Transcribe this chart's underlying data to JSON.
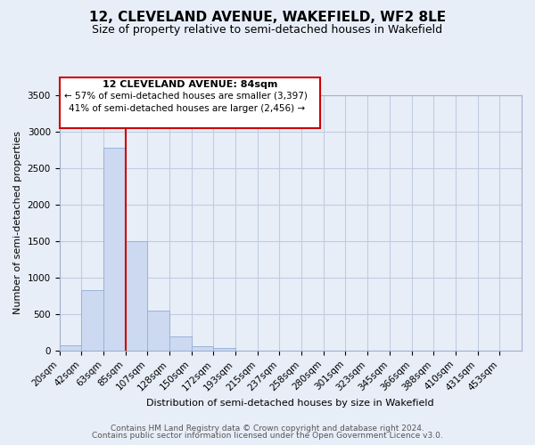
{
  "title": "12, CLEVELAND AVENUE, WAKEFIELD, WF2 8LE",
  "subtitle": "Size of property relative to semi-detached houses in Wakefield",
  "bar_categories": [
    "20sqm",
    "42sqm",
    "63sqm",
    "85sqm",
    "107sqm",
    "128sqm",
    "150sqm",
    "172sqm",
    "193sqm",
    "215sqm",
    "237sqm",
    "258sqm",
    "280sqm",
    "301sqm",
    "323sqm",
    "345sqm",
    "366sqm",
    "388sqm",
    "410sqm",
    "431sqm",
    "453sqm"
  ],
  "bar_values": [
    70,
    830,
    2780,
    1500,
    550,
    190,
    65,
    35,
    0,
    0,
    0,
    0,
    0,
    0,
    0,
    0,
    0,
    0,
    0,
    0,
    0
  ],
  "bar_color": "#ccd9f0",
  "bar_edgecolor": "#98b4d8",
  "property_label": "12 CLEVELAND AVENUE: 84sqm",
  "annotation_smaller": "← 57% of semi-detached houses are smaller (3,397)",
  "annotation_larger": "41% of semi-detached houses are larger (2,456) →",
  "xlabel": "Distribution of semi-detached houses by size in Wakefield",
  "ylabel": "Number of semi-detached properties",
  "ylim": [
    0,
    3500
  ],
  "yticks": [
    0,
    500,
    1000,
    1500,
    2000,
    2500,
    3000,
    3500
  ],
  "footnote1": "Contains HM Land Registry data © Crown copyright and database right 2024.",
  "footnote2": "Contains public sector information licensed under the Open Government Licence v3.0.",
  "background_color": "#e8eef8",
  "plot_bg_color": "#e8eef8",
  "grid_color": "#c0cce0",
  "box_color": "#cc0000",
  "vline_color": "#cc0000",
  "bin_width": 22,
  "n_bins": 21,
  "property_bin_index": 3,
  "title_fontsize": 11,
  "subtitle_fontsize": 9,
  "axis_fontsize": 8,
  "tick_fontsize": 7.5,
  "footnote_fontsize": 6.5
}
